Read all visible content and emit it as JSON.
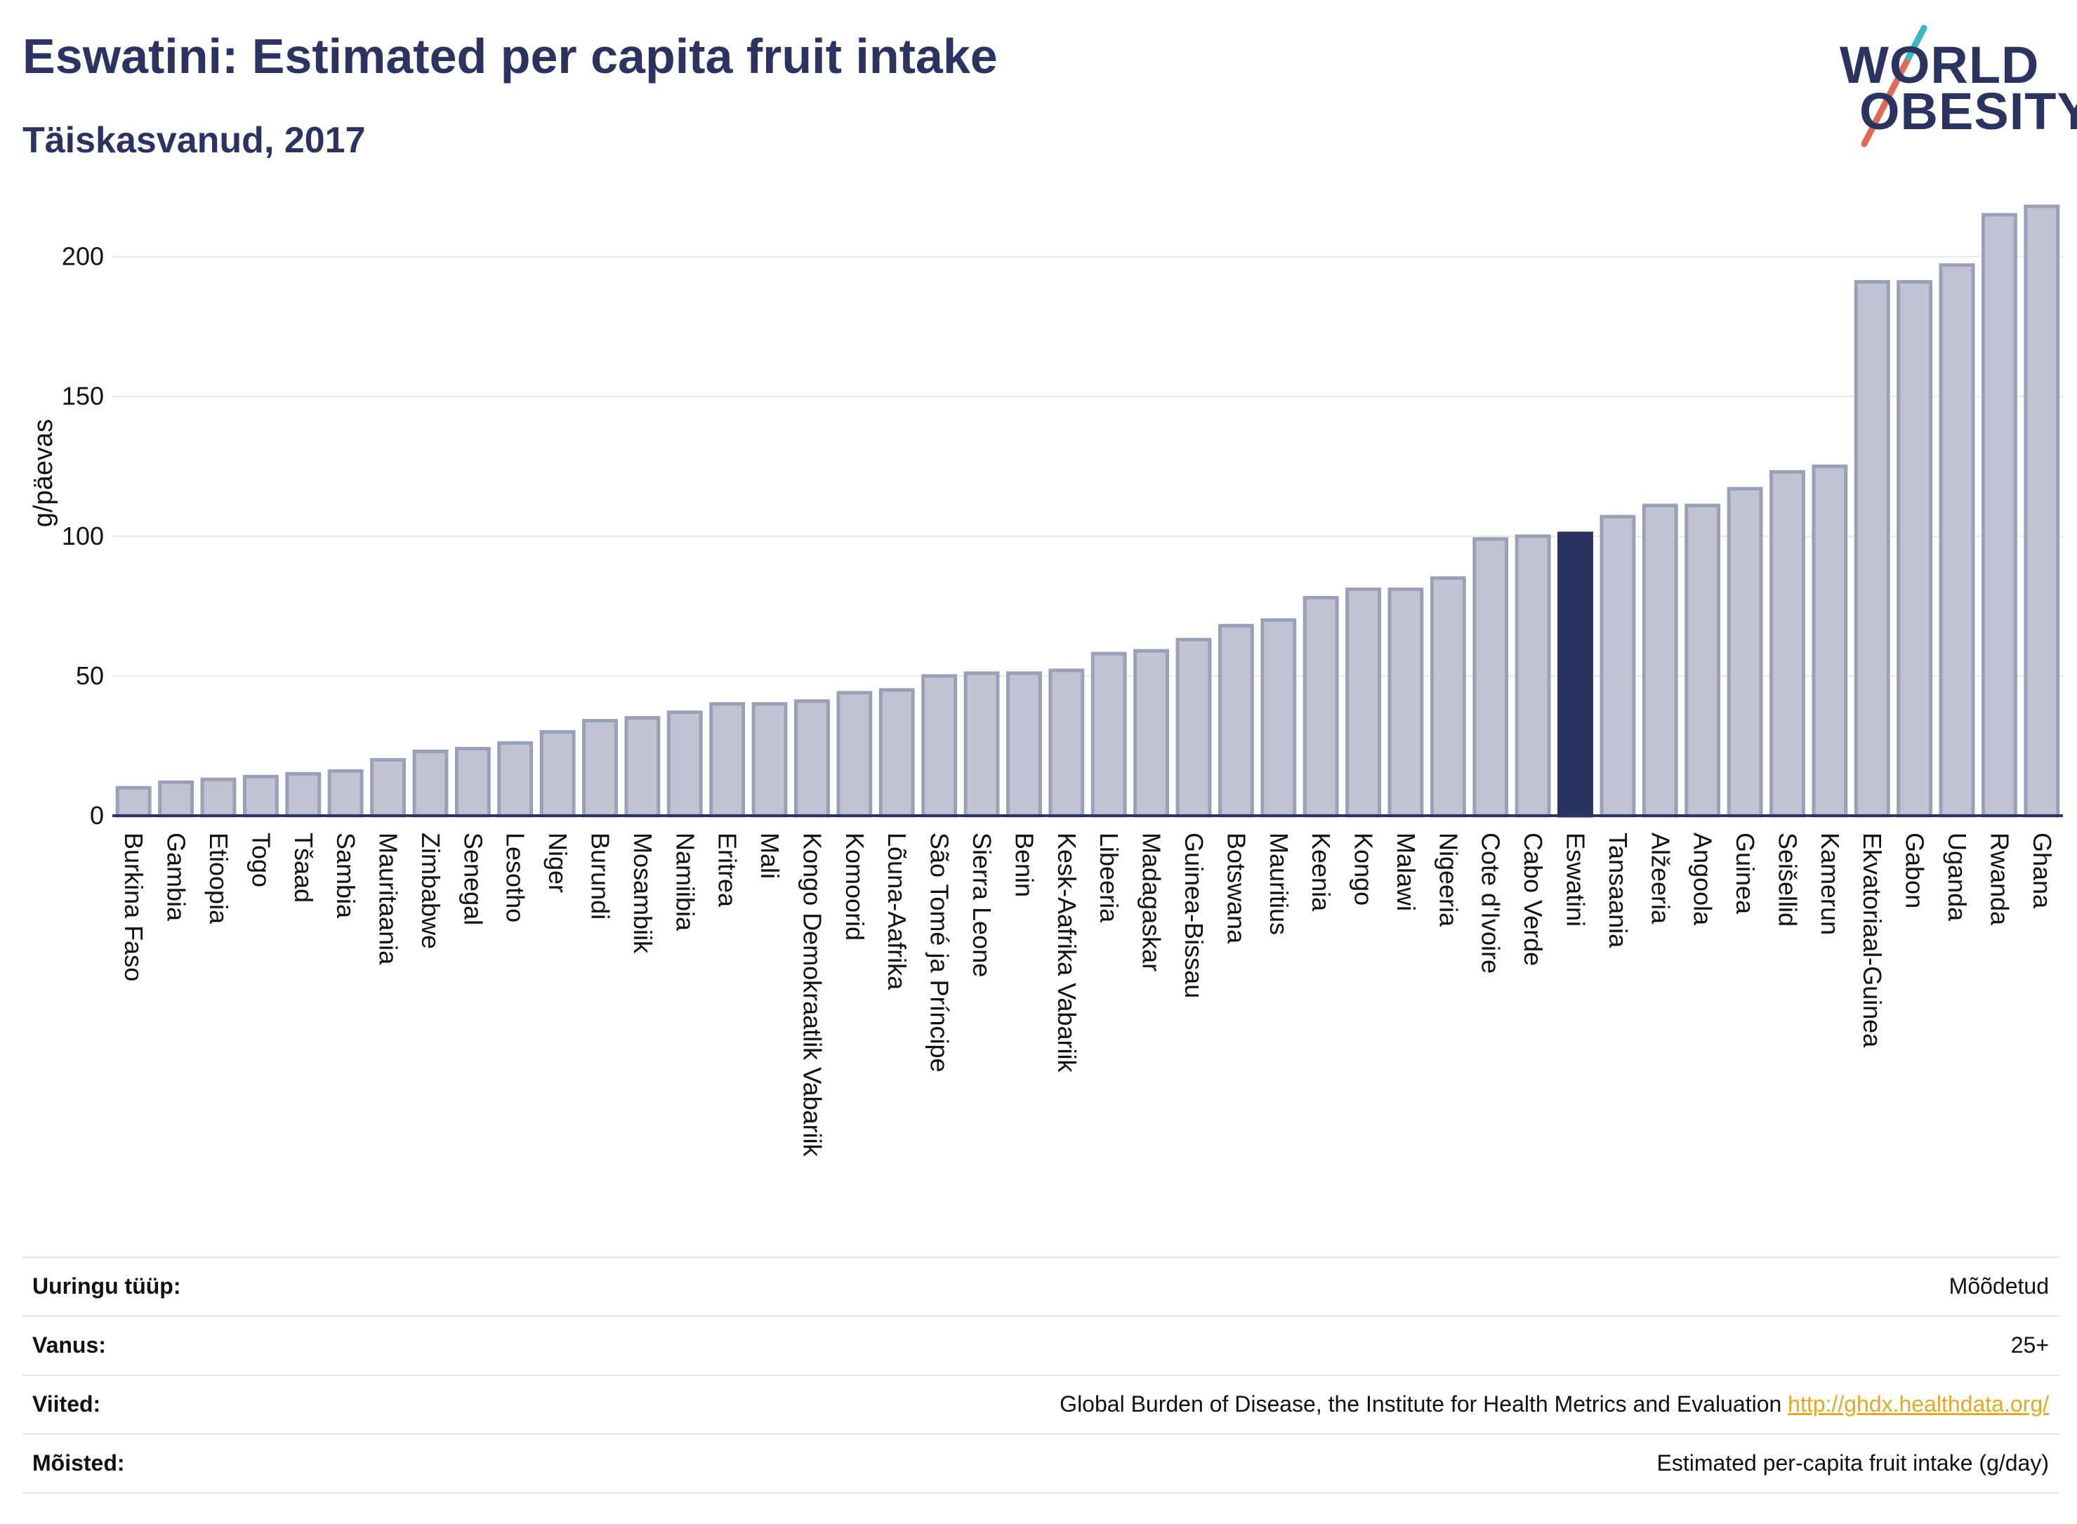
{
  "header": {
    "title": "Eswatini: Estimated per capita fruit intake",
    "subtitle": "Täiskasvanud, 2017"
  },
  "logo": {
    "line1": "WORLD",
    "line2": "OBESITY",
    "text_color": "#2b3460",
    "slash_colors": [
      "#e06a55",
      "#3bb8c3"
    ]
  },
  "chart_data": {
    "type": "bar",
    "ylabel": "g/päevas",
    "ylim": [
      0,
      220
    ],
    "yticks": [
      0,
      50,
      100,
      150,
      200
    ],
    "grid": true,
    "highlight": "Eswatini",
    "bar_color": "#bfc3d2",
    "bar_border_color": "#9ba0b8",
    "highlight_color": "#2b3460",
    "categories": [
      "Burkina Faso",
      "Gambia",
      "Etioopia",
      "Togo",
      "Tšaad",
      "Sambia",
      "Mauritaania",
      "Zimbabwe",
      "Senegal",
      "Lesotho",
      "Niger",
      "Burundi",
      "Mosambiik",
      "Namiibia",
      "Eritrea",
      "Mali",
      "Kongo Demokraatlik Vabariik",
      "Komoorid",
      "Lõuna-Aafrika",
      "São Tomé ja Príncipe",
      "Sierra Leone",
      "Benin",
      "Kesk-Aafrika Vabariik",
      "Libeeria",
      "Madagaskar",
      "Guinea-Bissau",
      "Botswana",
      "Mauritius",
      "Keenia",
      "Kongo",
      "Malawi",
      "Nigeeria",
      "Cote d'Ivoire",
      "Cabo Verde",
      "Eswatini",
      "Tansaania",
      "Alžeeria",
      "Angoola",
      "Guinea",
      "Seišellid",
      "Kamerun",
      "Ekvatoriaal-Guinea",
      "Gabon",
      "Uganda",
      "Rwanda",
      "Ghana"
    ],
    "values": [
      10,
      12,
      13,
      14,
      15,
      16,
      20,
      23,
      24,
      26,
      30,
      34,
      35,
      37,
      40,
      40,
      41,
      44,
      45,
      50,
      51,
      51,
      52,
      58,
      59,
      63,
      68,
      70,
      78,
      81,
      81,
      85,
      99,
      100,
      101,
      107,
      111,
      111,
      117,
      123,
      125,
      191,
      191,
      197,
      215,
      218
    ]
  },
  "info": {
    "rows": [
      {
        "label": "Uuringu tüüp:",
        "value": "Mõõdetud"
      },
      {
        "label": "Vanus:",
        "value": "25+"
      },
      {
        "label": "Viited:",
        "value": "Global Burden of Disease, the Institute for Health Metrics and Evaluation",
        "link": "http://ghdx.healthdata.org/"
      },
      {
        "label": "Mõisted:",
        "value": "Estimated per-capita fruit intake (g/day)"
      }
    ]
  }
}
